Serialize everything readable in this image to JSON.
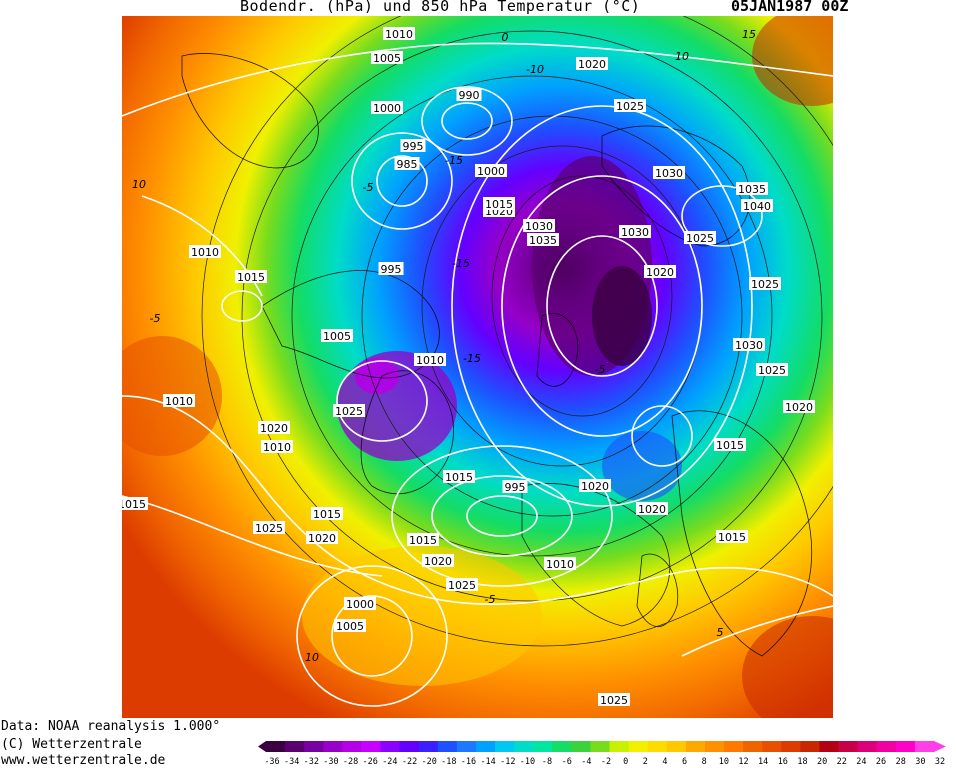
{
  "header": {
    "title": "Bodendr. (hPa) und 850 hPa Temperatur (°C)",
    "date": "05JAN1987 00Z"
  },
  "credits": {
    "line1": "Data: NOAA reanalysis 1.000°",
    "line2": "(C) Wetterzentrale",
    "line3": "www.wetterzentrale.de"
  },
  "colorbar": {
    "ticks": [
      "-36",
      "-34",
      "-32",
      "-30",
      "-28",
      "-26",
      "-24",
      "-22",
      "-20",
      "-18",
      "-16",
      "-14",
      "-12",
      "-10",
      "-8",
      "-6",
      "-4",
      "-2",
      "0",
      "2",
      "4",
      "6",
      "8",
      "10",
      "12",
      "14",
      "16",
      "18",
      "20",
      "22",
      "24",
      "26",
      "28",
      "30",
      "32"
    ],
    "colors": [
      "#3a0040",
      "#5a0070",
      "#7800a0",
      "#9600c8",
      "#b400e6",
      "#c800ff",
      "#8c00ff",
      "#6400ff",
      "#3c1eff",
      "#1e50ff",
      "#1e78ff",
      "#00a0ff",
      "#00c8f0",
      "#00dcc8",
      "#00e6a0",
      "#14dc64",
      "#3cd23c",
      "#78dc1e",
      "#c8f000",
      "#f0f000",
      "#ffdc00",
      "#ffc800",
      "#ffa800",
      "#ff9000",
      "#ff7800",
      "#f06400",
      "#e65000",
      "#dc3c00",
      "#c82800",
      "#b40014",
      "#c80046",
      "#dc0078",
      "#f000a0",
      "#ff00c8",
      "#ff40e6"
    ]
  },
  "map": {
    "isobar_labels": [
      {
        "text": "1010"
      },
      {
        "text": "1005"
      },
      {
        "text": "1000"
      },
      {
        "text": "990"
      },
      {
        "text": "995"
      },
      {
        "text": "985"
      },
      {
        "text": "1000"
      },
      {
        "text": "1020"
      },
      {
        "text": "1030"
      },
      {
        "text": "1015"
      },
      {
        "text": "1020"
      },
      {
        "text": "1025"
      },
      {
        "text": "1030"
      },
      {
        "text": "1035"
      },
      {
        "text": "1040"
      },
      {
        "text": "1025"
      },
      {
        "text": "1030"
      },
      {
        "text": "1035"
      },
      {
        "text": "1020"
      },
      {
        "text": "1025"
      },
      {
        "text": "1030"
      },
      {
        "text": "1025"
      },
      {
        "text": "1020"
      },
      {
        "text": "1010"
      },
      {
        "text": "1015"
      },
      {
        "text": "995"
      },
      {
        "text": "1005"
      },
      {
        "text": "1010"
      },
      {
        "text": "1025"
      },
      {
        "text": "1010"
      },
      {
        "text": "1020"
      },
      {
        "text": "1010"
      },
      {
        "text": "1015"
      },
      {
        "text": "995"
      },
      {
        "text": "1015"
      },
      {
        "text": "1020"
      },
      {
        "text": "1015"
      },
      {
        "text": "1020"
      },
      {
        "text": "1010"
      },
      {
        "text": "1025"
      },
      {
        "text": "1025"
      },
      {
        "text": "1020"
      },
      {
        "text": "1015"
      },
      {
        "text": "1000"
      },
      {
        "text": "1005"
      },
      {
        "text": "1025"
      },
      {
        "text": "1015"
      },
      {
        "text": "1015"
      },
      {
        "text": "1020"
      }
    ],
    "temp_labels": [
      "0",
      "-10",
      "-15",
      "-5",
      "10",
      "-15",
      "-15",
      "-5",
      "-5",
      "15",
      "10",
      "-5",
      "5",
      "10"
    ]
  }
}
